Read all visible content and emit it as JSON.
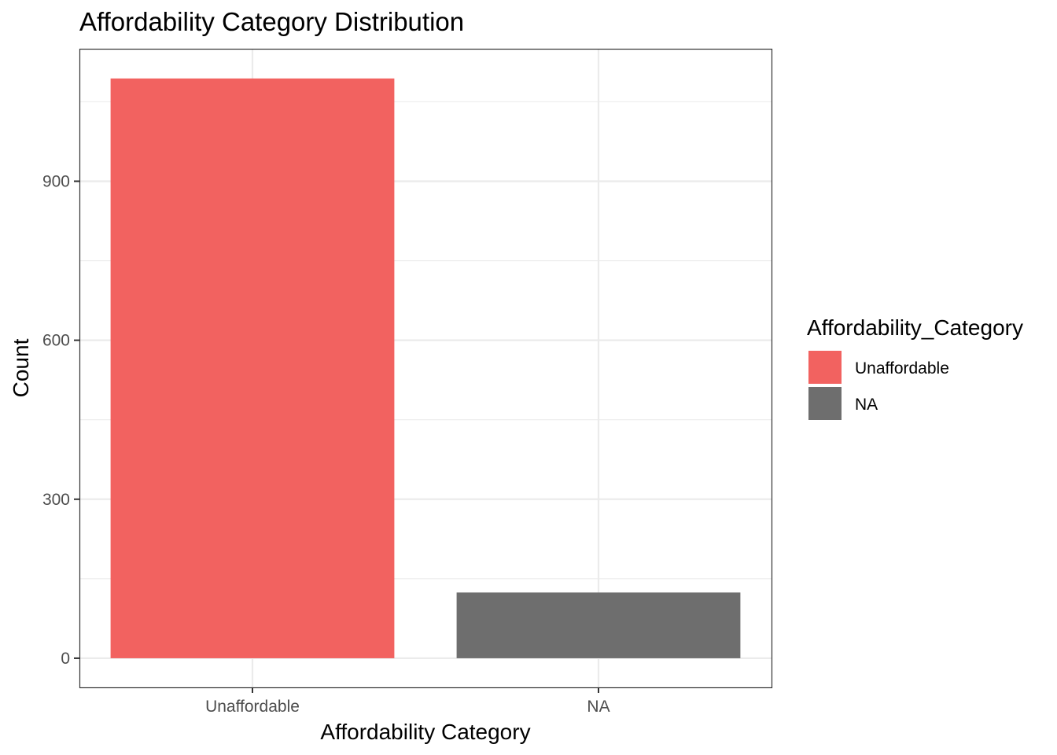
{
  "chart_data": {
    "type": "bar",
    "title": "Affordability Category Distribution",
    "xlabel": "Affordability Category",
    "ylabel": "Count",
    "categories": [
      "Unaffordable",
      "NA"
    ],
    "values": [
      1094,
      124
    ],
    "colors": [
      "#F26260",
      "#6E6E6E"
    ],
    "ylim": [
      -55,
      1150
    ],
    "y_ticks": [
      0,
      300,
      600,
      900
    ],
    "y_tick_labels": [
      "0",
      "300",
      "600",
      "900"
    ],
    "grid": true,
    "legend": {
      "title": "Affordability_Category",
      "placement": "right",
      "entries": [
        {
          "label": "Unaffordable",
          "color": "#F26260"
        },
        {
          "label": "NA",
          "color": "#6E6E6E"
        }
      ]
    }
  }
}
